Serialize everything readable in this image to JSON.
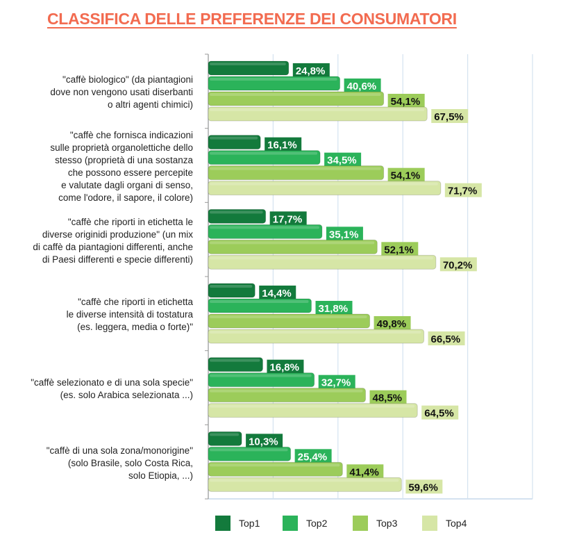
{
  "chart_data": {
    "type": "bar",
    "orientation": "horizontal",
    "title": "CLASSIFICA DELLE PREFERENZE DEI CONSUMATORI",
    "categories": [
      "\"caffè biologico\" (da piantagioni\ndove non vengono usati diserbanti\no altri agenti chimici)",
      "\"caffè che fornisca indicazioni\nsulle proprietà organolettiche dello\nstesso (proprietà di una sostanza\nche possono essere percepite\ne valutate dagli organi di senso,\ncome l'odore, il sapore, il colore)",
      "\"caffè che riporti in etichetta le\ndiverse originidi produzione\" (un mix\ndi caffè da piantagioni differenti, anche\ndi Paesi differenti e specie differenti)",
      "\"caffè che riporti in etichetta\nle diverse intensità di tostatura\n(es. leggera, media o forte)\"",
      "\"caffè selezionato e di una sola specie\"\n(es. solo Arabica selezionata ...)",
      "\"caffè di una sola zona/monorigine\"\n(solo Brasile, solo Costa Rica,\nsolo Etiopia, ...)"
    ],
    "series": [
      {
        "name": "Top1",
        "color": "#137a3c",
        "label_color": "#ffffff",
        "values": [
          24.8,
          16.1,
          17.7,
          14.4,
          16.8,
          10.3
        ],
        "labels": [
          "24,8%",
          "16,1%",
          "17,7%",
          "14,4%",
          "16,8%",
          "10,3%"
        ]
      },
      {
        "name": "Top2",
        "color": "#2bb35a",
        "label_color": "#ffffff",
        "values": [
          40.6,
          34.5,
          35.1,
          31.8,
          32.7,
          25.4
        ],
        "labels": [
          "40,6%",
          "34,5%",
          "35,1%",
          "31,8%",
          "32,7%",
          "25,4%"
        ]
      },
      {
        "name": "Top3",
        "color": "#9ccc5a",
        "label_color": "#111111",
        "values": [
          54.1,
          54.1,
          52.1,
          49.8,
          48.5,
          41.4
        ],
        "labels": [
          "54,1%",
          "54,1%",
          "52,1%",
          "49,8%",
          "48,5%",
          "41,4%"
        ]
      },
      {
        "name": "Top4",
        "color": "#d6e6a6",
        "label_color": "#111111",
        "values": [
          67.5,
          71.7,
          70.2,
          66.5,
          64.5,
          59.6
        ],
        "labels": [
          "67,5%",
          "71,7%",
          "70,2%",
          "66,5%",
          "64,5%",
          "59,6%"
        ]
      }
    ],
    "xlim": [
      0,
      100
    ],
    "grid": true,
    "grid_step": 20,
    "legend": "bottom"
  }
}
